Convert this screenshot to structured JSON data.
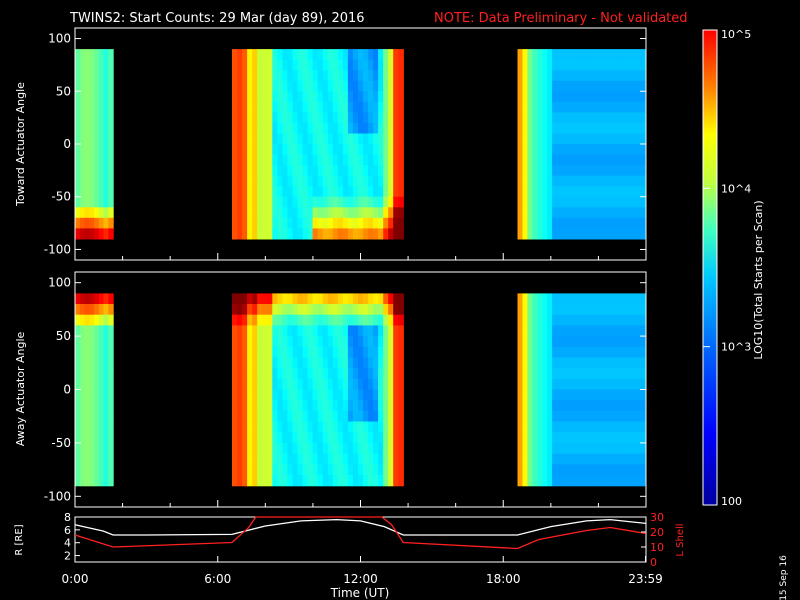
{
  "header": {
    "title": "TWINS2: Start Counts: 29 Mar (day  89), 2016",
    "note": "NOTE: Data Preliminary - Not validated"
  },
  "footer": {
    "date_stamp": "15 Sep 16"
  },
  "colorbar": {
    "label": "LOG10(Total Starts per Scan)",
    "ticks": [
      "10^5",
      "10^4",
      "10^3",
      "100"
    ],
    "tick_values": [
      100000,
      10000,
      1000,
      100
    ],
    "range": [
      100,
      100000
    ],
    "scale": "log"
  },
  "colors": {
    "background": "#000000",
    "note": "#ff2020",
    "l_shell_line": "#ff2020",
    "r_line": "#ffffff"
  },
  "chart_data": [
    {
      "type": "heatmap",
      "ylabel": "Toward Actuator Angle",
      "ylim": [
        -110,
        110
      ],
      "yticks": [
        100,
        50,
        0,
        -50,
        -100
      ],
      "xlim": [
        0,
        24
      ],
      "data_windows_hours": [
        [
          0,
          1.6
        ],
        [
          6.6,
          13.8
        ],
        [
          18.6,
          23.99
        ]
      ]
    },
    {
      "type": "heatmap",
      "ylabel": "Away Actuator Angle",
      "ylim": [
        -110,
        110
      ],
      "yticks": [
        100,
        50,
        0,
        -50,
        -100
      ],
      "xlim": [
        0,
        24
      ],
      "data_windows_hours": [
        [
          0,
          1.6
        ],
        [
          6.6,
          13.8
        ],
        [
          18.6,
          23.99
        ]
      ]
    },
    {
      "type": "line",
      "xlabel": "Time (UT)",
      "xticks": [
        "0:00",
        "6:00",
        "12:00",
        "18:00",
        "23:59"
      ],
      "xtick_hours": [
        0,
        6,
        12,
        18,
        23.98
      ],
      "ylabel_left": "R [RE]",
      "ylim_left": [
        1,
        8
      ],
      "yticks_left": [
        8,
        6,
        4,
        2
      ],
      "ylabel_right": "L Shell",
      "ylim_right": [
        0,
        30
      ],
      "yticks_right": [
        30,
        20,
        10,
        0
      ],
      "series": [
        {
          "axis": "left",
          "x": [
            0,
            1.2,
            1.6,
            3,
            6.6,
            8,
            9.5,
            11,
            12,
            13,
            13.8,
            15,
            18.6,
            20,
            21.5,
            22.5,
            23.99
          ],
          "y": [
            6.8,
            5.8,
            5.2,
            5.2,
            5.3,
            6.6,
            7.4,
            7.6,
            7.4,
            6.5,
            5.2,
            5.2,
            5.2,
            6.5,
            7.4,
            7.6,
            7.0
          ]
        },
        {
          "axis": "right",
          "x": [
            0,
            1.6,
            6.6,
            7.3,
            7.6,
            12.9,
            13.3,
            13.8,
            18.6,
            19.5,
            21.5,
            22.5,
            23.99
          ],
          "y": [
            18,
            10,
            13,
            23,
            30,
            30,
            25,
            13,
            9,
            15,
            21,
            23,
            19
          ]
        }
      ]
    }
  ]
}
